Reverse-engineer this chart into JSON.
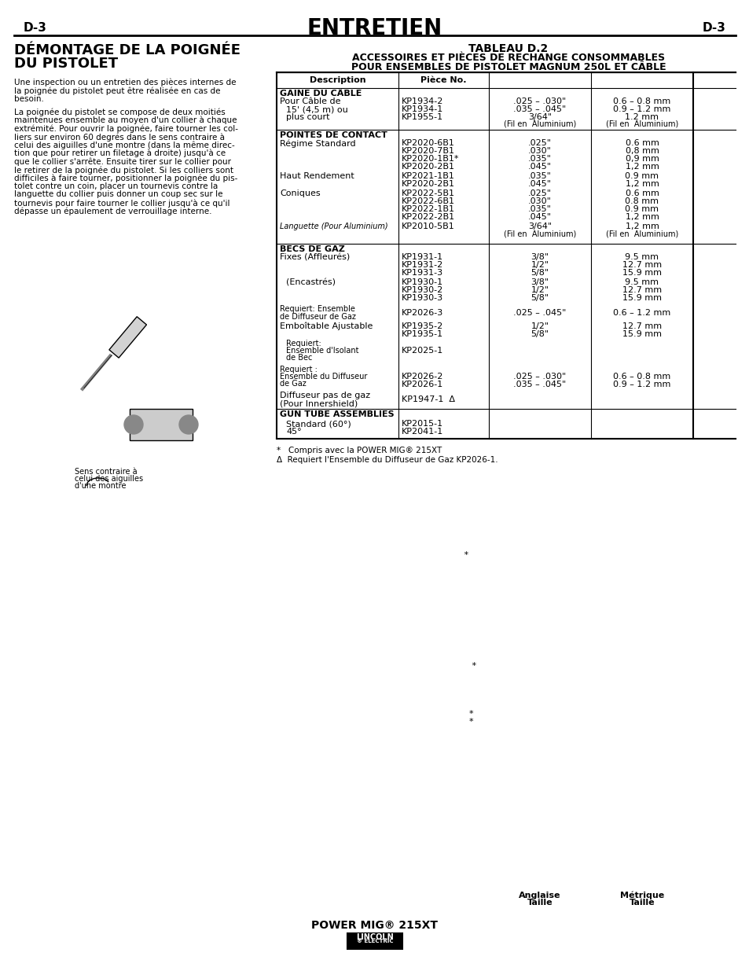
{
  "page_label_left": "D-3",
  "page_label_right": "D-3",
  "main_title": "ENTRETIEN",
  "section_title_line1": "DÉMONTAGE DE LA POIGNÉE",
  "section_title_line2": "DU PISTOLET",
  "table_title_line1": "TABLEAU D.2",
  "table_title_line2": "ACCESSOIRES ET PIÈCES DE RECHANGE CONSOMMABLES",
  "table_title_line3": "POUR ENSEMBLES DE PISTOLET MAGNUM 250L ET CÂBLE",
  "body_text": "Une inspection ou un entretien des pièces internes de\nla poignée du pistolet peut être réalisée en cas de\nbesoin.\n\nLa poignée du pistolet se compose de deux moitiés\nmaintenues ensemble au moyen d'un collier à chaque\nextrémité. Pour ouvrir la poignée, faire tourner les col-\nliers sur environ 60 degrés dans le sens contraire à\ncelui des aiguilles d'une montre (dans la même direc-\ntion que pour retirer un filetage à droite) jusqu'à ce\nque le collier s'arrête. Ensuite tirer sur le collier pour\nle retirer de la poignée du pistolet. Si les colliers sont\ndifficiles à faire tourner, positionner la poignée du pis-\ntolet contre un coin, placer un tournevis contre la\nlanguette du collier puis donner un coup sec sur le\ntournevis pour faire tourner le collier jusqu'à ce qu'il\ndépasse un épaulement de verrouillage interne.",
  "caption_line1": "Sens contraire à",
  "caption_line2": "celui des aiguilles",
  "caption_line3": "d'une montre",
  "footnote1": "*   Compris avec la POWER MIG® 215XT",
  "footnote2": "Δ  Requiert l'Ensemble du Diffuseur de Gaz KP2026-1.",
  "footer_text": "POWER MIG® 215XT",
  "col_headers": [
    "Description",
    "Pièce No.",
    "Taille\nAnglaise",
    "Taille\nMétrique"
  ],
  "background_color": "#ffffff"
}
